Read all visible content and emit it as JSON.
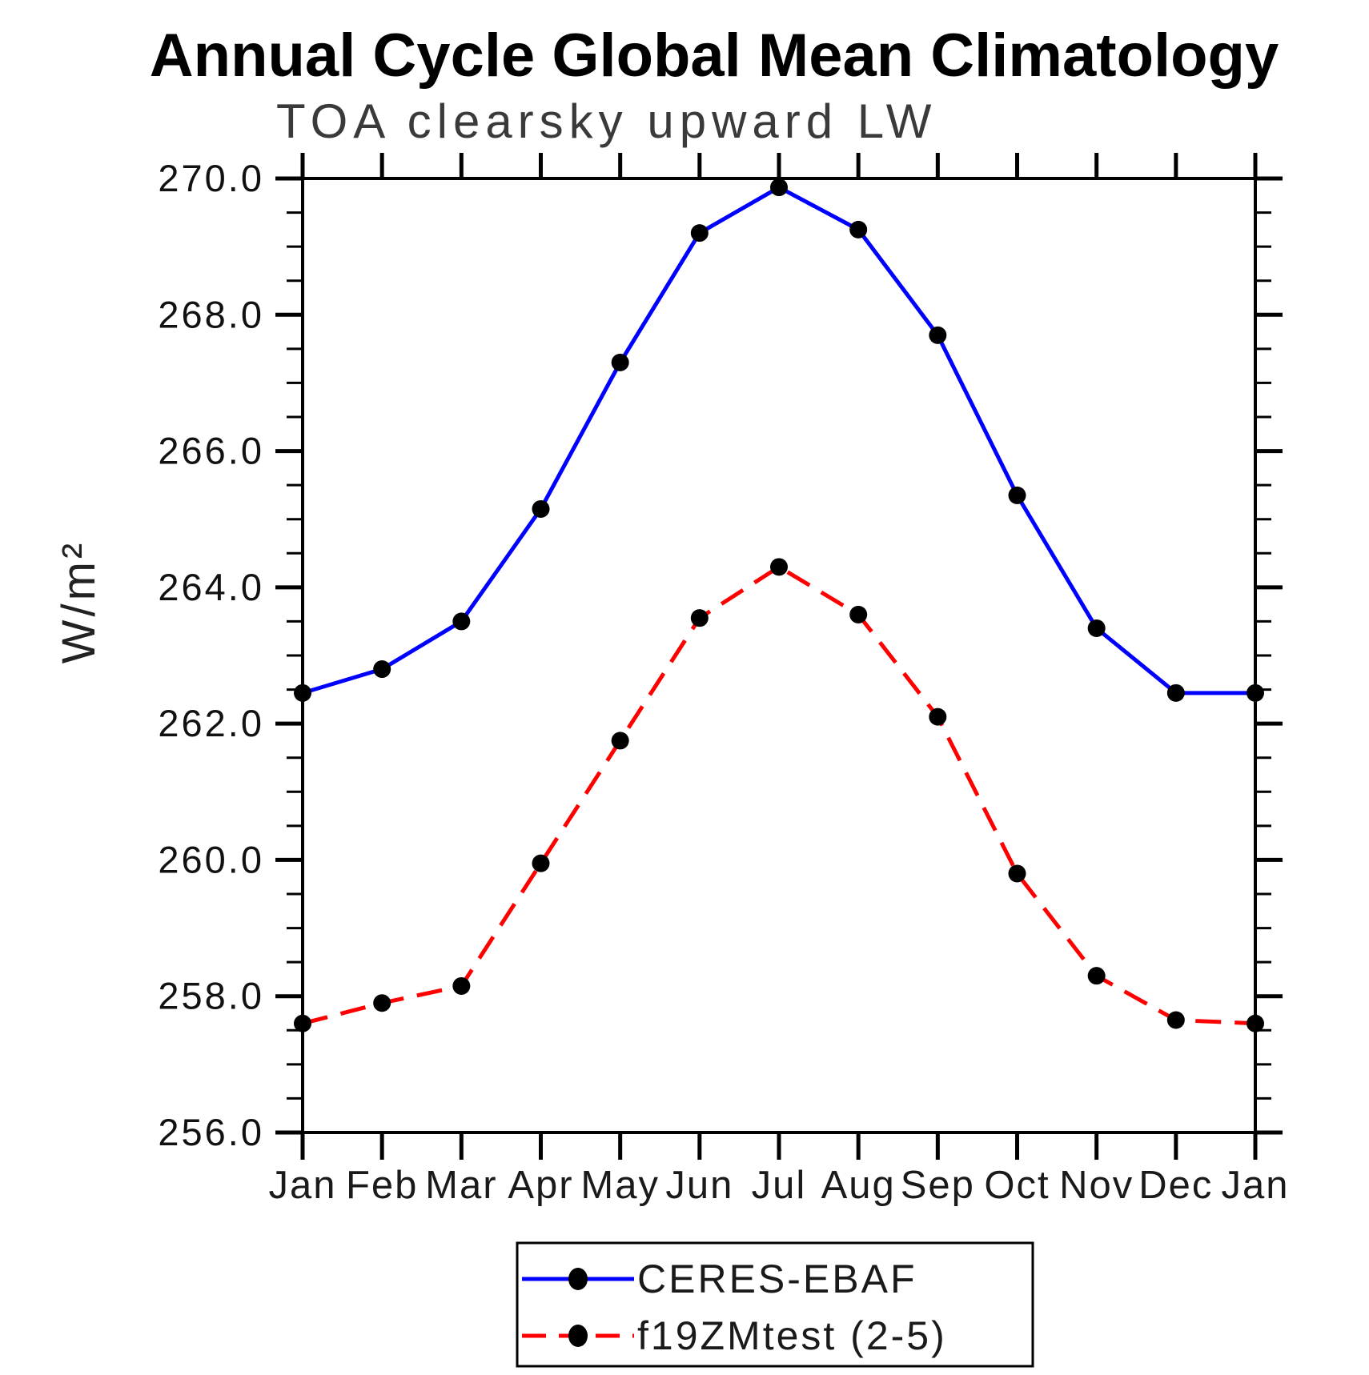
{
  "chart_data": {
    "type": "line",
    "title": "Annual Cycle Global Mean Climatology",
    "subtitle": "TOA clearsky upward LW",
    "ylabel": "W/m²",
    "ylim": [
      256.0,
      270.0
    ],
    "ytick_step": 2.0,
    "ytick_minor_step": 0.5,
    "ytick_labels": [
      "256.0",
      "258.0",
      "260.0",
      "262.0",
      "264.0",
      "266.0",
      "268.0",
      "270.0"
    ],
    "categories": [
      "Jan",
      "Feb",
      "Mar",
      "Apr",
      "May",
      "Jun",
      "Jul",
      "Aug",
      "Sep",
      "Oct",
      "Nov",
      "Dec",
      "Jan"
    ],
    "grid": false,
    "legend_position": "bottom-center",
    "axis_color": "#000000",
    "series": [
      {
        "name": "CERES-EBAF",
        "color": "#0000ff",
        "style": "solid",
        "marker": "circle",
        "marker_color": "#000000",
        "values": [
          262.45,
          262.8,
          263.5,
          265.15,
          267.3,
          269.2,
          269.87,
          269.25,
          267.7,
          265.35,
          263.4,
          262.45,
          262.45
        ]
      },
      {
        "name": "f19ZMtest (2-5)",
        "color": "#ff0000",
        "style": "dashed",
        "marker": "circle",
        "marker_color": "#000000",
        "values": [
          257.6,
          257.9,
          258.15,
          259.95,
          261.75,
          263.55,
          264.3,
          263.6,
          262.1,
          259.8,
          258.3,
          257.65,
          257.6
        ]
      }
    ]
  }
}
